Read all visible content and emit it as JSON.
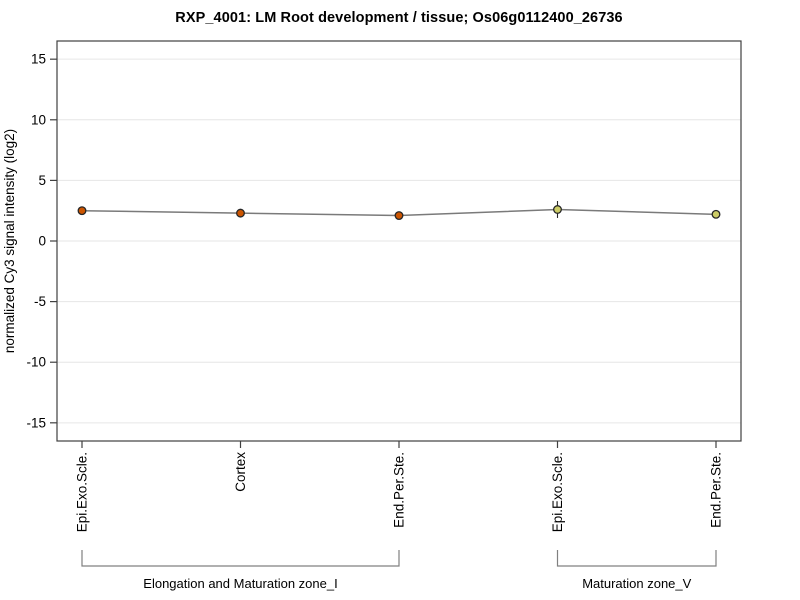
{
  "chart_data": {
    "type": "line",
    "title": "RXP_4001: LM Root development / tissue; Os06g0112400_26736",
    "ylabel": "normalized Cy3 signal intensity (log2)",
    "xlabel": "",
    "ylim": [
      -16.5,
      16.5
    ],
    "yticks": [
      15,
      10,
      5,
      0,
      -5,
      -10,
      -15
    ],
    "grid": true,
    "legend": "none",
    "categories": [
      "Epi.Exo.Scle.",
      "Cortex",
      "End.Per.Ste.",
      "Epi.Exo.Scle.",
      "End.Per.Ste."
    ],
    "series": [
      {
        "name": "normalized Cy3 signal intensity",
        "values": [
          2.5,
          2.3,
          2.1,
          2.6,
          2.2
        ],
        "errors": [
          0.2,
          0.2,
          0.2,
          0.7,
          0.3
        ],
        "point_colors": [
          "#cc5500",
          "#cc5500",
          "#cc5500",
          "#cccc66",
          "#cccc66"
        ]
      }
    ],
    "groups": [
      {
        "label": "Elongation and Maturation zone_I",
        "start": 0,
        "end": 2
      },
      {
        "label": "Maturation zone_V",
        "start": 3,
        "end": 4
      }
    ],
    "colors": {
      "line": "#7a7a7a",
      "point_stroke": "#262626",
      "grid": "#e6e6e6",
      "axis": "#404040",
      "bracket": "#808080",
      "text": "#000000",
      "background": "#ffffff"
    }
  }
}
